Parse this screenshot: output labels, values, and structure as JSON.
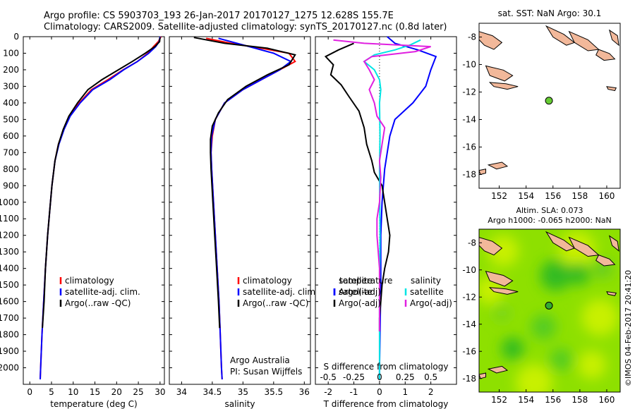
{
  "header": {
    "line1": "Argo profile: CS 5903703_193 26-Jan-2017 20170127_1275 12.628S 155.7E",
    "line2": "Climatology: CARS2009. Satellite-adjusted climatology: synTS_20170127.nc (0.8d later)"
  },
  "colors": {
    "climatology": "#ff0000",
    "satellite": "#0000ff",
    "argo": "#000000",
    "salinity_satellite": "#00e5e5",
    "salinity_argo": "#e020e0",
    "land": "#f2b89a",
    "sla_green": "#22bb22",
    "sla_yellow": "#c8f000"
  },
  "chart_data": [
    {
      "type": "line",
      "name": "temperature-panel",
      "xlabel": "temperature (deg C)",
      "ylim": [
        2100,
        0
      ],
      "xlim": [
        -1.5,
        31
      ],
      "xticks": [
        0,
        5,
        10,
        15,
        20,
        25,
        30
      ],
      "yticks": [
        0,
        100,
        200,
        300,
        400,
        500,
        600,
        700,
        800,
        900,
        1000,
        1100,
        1200,
        1300,
        1400,
        1500,
        1600,
        1700,
        1800,
        1900,
        2000
      ],
      "legend": [
        "climatology",
        "satellite-adj. clim.",
        "Argo(..raw -QC)"
      ],
      "series": [
        {
          "name": "climatology",
          "color": "#ff0000",
          "points": [
            [
              30.2,
              0
            ],
            [
              29.6,
              30
            ],
            [
              28.5,
              60
            ],
            [
              27.2,
              100
            ],
            [
              24.8,
              150
            ],
            [
              21.5,
              200
            ],
            [
              18,
              260
            ],
            [
              14.2,
              320
            ],
            [
              11.4,
              400
            ],
            [
              9.2,
              480
            ],
            [
              7.8,
              560
            ],
            [
              6.6,
              650
            ],
            [
              5.8,
              750
            ],
            [
              5.1,
              900
            ],
            [
              4.6,
              1050
            ],
            [
              4.1,
              1200
            ],
            [
              3.6,
              1400
            ],
            [
              3.2,
              1600
            ],
            [
              2.8,
              1800
            ],
            [
              2.5,
              2000
            ],
            [
              2.4,
              2070
            ]
          ]
        },
        {
          "name": "satellite-adj. clim.",
          "color": "#0000ff",
          "points": [
            [
              30,
              0
            ],
            [
              29.8,
              30
            ],
            [
              29,
              60
            ],
            [
              27.4,
              100
            ],
            [
              24.8,
              150
            ],
            [
              21.6,
              200
            ],
            [
              18.4,
              260
            ],
            [
              14.5,
              320
            ],
            [
              11.6,
              400
            ],
            [
              9.3,
              480
            ],
            [
              7.9,
              560
            ],
            [
              6.7,
              650
            ],
            [
              5.8,
              750
            ],
            [
              5.1,
              900
            ],
            [
              4.6,
              1050
            ],
            [
              4.1,
              1200
            ],
            [
              3.6,
              1400
            ],
            [
              3.2,
              1600
            ],
            [
              2.8,
              1800
            ],
            [
              2.5,
              2000
            ],
            [
              2.4,
              2070
            ]
          ]
        },
        {
          "name": "Argo(..raw -QC)",
          "color": "#000000",
          "points": [
            [
              30,
              5
            ],
            [
              29.9,
              30
            ],
            [
              28.8,
              60
            ],
            [
              26.6,
              100
            ],
            [
              23.6,
              150
            ],
            [
              20.4,
              200
            ],
            [
              16.6,
              260
            ],
            [
              13.4,
              320
            ],
            [
              11,
              400
            ],
            [
              9,
              480
            ],
            [
              7.7,
              560
            ],
            [
              6.6,
              650
            ],
            [
              5.8,
              750
            ],
            [
              5.1,
              900
            ],
            [
              4.6,
              1050
            ],
            [
              4.1,
              1200
            ],
            [
              3.6,
              1400
            ],
            [
              3.3,
              1600
            ],
            [
              2.9,
              1760
            ]
          ]
        }
      ]
    },
    {
      "type": "line",
      "name": "salinity-panel",
      "xlabel": "salinity",
      "ylim": [
        2100,
        0
      ],
      "xlim": [
        33.8,
        36.1
      ],
      "xticks": [
        34,
        34.5,
        35,
        35.5,
        36
      ],
      "legend": [
        "climatology",
        "satellite-adj. clim.",
        "Argo(..raw -QC)"
      ],
      "annotations": [
        "Argo Australia",
        "PI: Susan Wijffels"
      ],
      "series": [
        {
          "name": "climatology",
          "color": "#ff0000",
          "points": [
            [
              34.4,
              10
            ],
            [
              34.8,
              40
            ],
            [
              35.3,
              70
            ],
            [
              35.75,
              100
            ],
            [
              35.85,
              150
            ],
            [
              35.6,
              200
            ],
            [
              35.3,
              260
            ],
            [
              35,
              320
            ],
            [
              34.7,
              400
            ],
            [
              34.55,
              500
            ],
            [
              34.5,
              600
            ],
            [
              34.48,
              700
            ],
            [
              34.49,
              800
            ],
            [
              34.52,
              1000
            ],
            [
              34.55,
              1200
            ],
            [
              34.58,
              1400
            ],
            [
              34.61,
              1600
            ],
            [
              34.63,
              1800
            ],
            [
              34.65,
              2000
            ],
            [
              34.66,
              2070
            ]
          ]
        },
        {
          "name": "satellite-adj. clim.",
          "color": "#0000ff",
          "points": [
            [
              34.6,
              10
            ],
            [
              34.9,
              40
            ],
            [
              35.2,
              70
            ],
            [
              35.5,
              100
            ],
            [
              35.78,
              150
            ],
            [
              35.6,
              200
            ],
            [
              35.3,
              260
            ],
            [
              35,
              320
            ],
            [
              34.7,
              400
            ],
            [
              34.55,
              500
            ],
            [
              34.49,
              600
            ],
            [
              34.48,
              700
            ],
            [
              34.49,
              800
            ],
            [
              34.52,
              1000
            ],
            [
              34.55,
              1200
            ],
            [
              34.58,
              1400
            ],
            [
              34.61,
              1600
            ],
            [
              34.63,
              1800
            ],
            [
              34.65,
              2000
            ],
            [
              34.66,
              2070
            ]
          ]
        },
        {
          "name": "Argo(..raw -QC)",
          "color": "#000000",
          "points": [
            [
              34.2,
              5
            ],
            [
              34.7,
              40
            ],
            [
              35.4,
              70
            ],
            [
              35.85,
              110
            ],
            [
              35.75,
              170
            ],
            [
              35.4,
              230
            ],
            [
              35.05,
              300
            ],
            [
              34.75,
              380
            ],
            [
              34.6,
              460
            ],
            [
              34.5,
              540
            ],
            [
              34.47,
              620
            ],
            [
              34.47,
              700
            ],
            [
              34.48,
              800
            ],
            [
              34.51,
              1000
            ],
            [
              34.54,
              1200
            ],
            [
              34.57,
              1400
            ],
            [
              34.6,
              1600
            ],
            [
              34.62,
              1760
            ]
          ]
        }
      ]
    },
    {
      "type": "line",
      "name": "difference-panel",
      "xlabel": "T difference from climatology",
      "xlabel2": "S difference from climatology",
      "xlim": [
        -2.5,
        3
      ],
      "xticks": [
        -2,
        -1,
        0,
        1,
        2
      ],
      "s_ticks": [
        -0.5,
        -0.25,
        0,
        0.25,
        0.5
      ],
      "legend": [
        "temperature",
        "satellite",
        "Argo(-adj)",
        "salinity",
        "satellite",
        "Argo(-adj)"
      ],
      "series": [
        {
          "name": "temperature satellite",
          "color": "#0000ff",
          "points": [
            [
              0.3,
              0
            ],
            [
              0.6,
              40
            ],
            [
              1.5,
              80
            ],
            [
              2.2,
              120
            ],
            [
              2,
              200
            ],
            [
              1.8,
              300
            ],
            [
              1.3,
              400
            ],
            [
              0.6,
              500
            ],
            [
              0.4,
              600
            ],
            [
              0.2,
              800
            ],
            [
              0.1,
              1000
            ],
            [
              0.05,
              1200
            ],
            [
              0.05,
              1500
            ],
            [
              0.02,
              1800
            ],
            [
              0,
              2000
            ],
            [
              0,
              2070
            ]
          ]
        },
        {
          "name": "temperature Argo(-adj)",
          "color": "#000000",
          "points": [
            [
              -1,
              40
            ],
            [
              -1.6,
              80
            ],
            [
              -2.1,
              120
            ],
            [
              -1.8,
              170
            ],
            [
              -1.9,
              230
            ],
            [
              -1.5,
              290
            ],
            [
              -1.2,
              360
            ],
            [
              -0.8,
              450
            ],
            [
              -0.6,
              550
            ],
            [
              -0.5,
              650
            ],
            [
              -0.3,
              750
            ],
            [
              -0.2,
              820
            ],
            [
              0.1,
              900
            ],
            [
              0.2,
              1000
            ],
            [
              0.3,
              1100
            ],
            [
              0.4,
              1200
            ],
            [
              0.35,
              1300
            ],
            [
              0.2,
              1400
            ],
            [
              0.1,
              1500
            ],
            [
              0.05,
              1600
            ],
            [
              0,
              1700
            ],
            [
              0,
              1780
            ]
          ]
        },
        {
          "name": "salinity satellite",
          "color": "#00e5e5",
          "points": [
            [
              1.6,
              20
            ],
            [
              1.2,
              50
            ],
            [
              0.6,
              80
            ],
            [
              -0.2,
              110
            ],
            [
              -0.6,
              150
            ],
            [
              -0.2,
              200
            ],
            [
              0,
              260
            ],
            [
              0.05,
              320
            ],
            [
              0,
              400
            ],
            [
              0.02,
              600
            ],
            [
              0,
              800
            ],
            [
              0.02,
              1200
            ],
            [
              0,
              1600
            ],
            [
              0,
              2000
            ],
            [
              0,
              2070
            ]
          ]
        },
        {
          "name": "salinity Argo(-adj)",
          "color": "#e020e0",
          "points": [
            [
              -1.8,
              20
            ],
            [
              -0.6,
              40
            ],
            [
              2,
              60
            ],
            [
              1.4,
              90
            ],
            [
              -0.3,
              120
            ],
            [
              -0.6,
              150
            ],
            [
              -0.4,
              200
            ],
            [
              -0.2,
              260
            ],
            [
              -0.4,
              320
            ],
            [
              -0.2,
              400
            ],
            [
              -0.1,
              480
            ],
            [
              0.2,
              550
            ],
            [
              0.1,
              650
            ],
            [
              0,
              750
            ],
            [
              0.05,
              850
            ],
            [
              0,
              1000
            ],
            [
              -0.1,
              1100
            ],
            [
              -0.1,
              1200
            ],
            [
              0,
              1400
            ],
            [
              0,
              1700
            ],
            [
              0,
              1780
            ]
          ]
        }
      ]
    },
    {
      "type": "scatter",
      "name": "sst-map",
      "title": "sat. SST: NaN Argo: 30.1",
      "xlim": [
        150.5,
        161
      ],
      "ylim": [
        -19,
        -7
      ],
      "xticks": [
        152,
        154,
        156,
        158,
        160
      ],
      "yticks": [
        -8,
        -10,
        -12,
        -14,
        -16,
        -18
      ],
      "points": [
        {
          "x": 155.7,
          "y": -12.63
        }
      ]
    },
    {
      "type": "heatmap",
      "name": "sla-map",
      "title_line1": "Altim. SLA: 0.073",
      "title_line2": "Argo h1000: -0.065 h2000: NaN",
      "xlim": [
        150.5,
        161
      ],
      "ylim": [
        -19,
        -7
      ],
      "xticks": [
        152,
        154,
        156,
        158,
        160
      ],
      "yticks": [
        -8,
        -10,
        -12,
        -14,
        -16,
        -18
      ],
      "points": [
        {
          "x": 155.7,
          "y": -12.63
        }
      ]
    }
  ],
  "footer": {
    "credit": "©IMOS 04-Feb-2017 20:41:20"
  }
}
